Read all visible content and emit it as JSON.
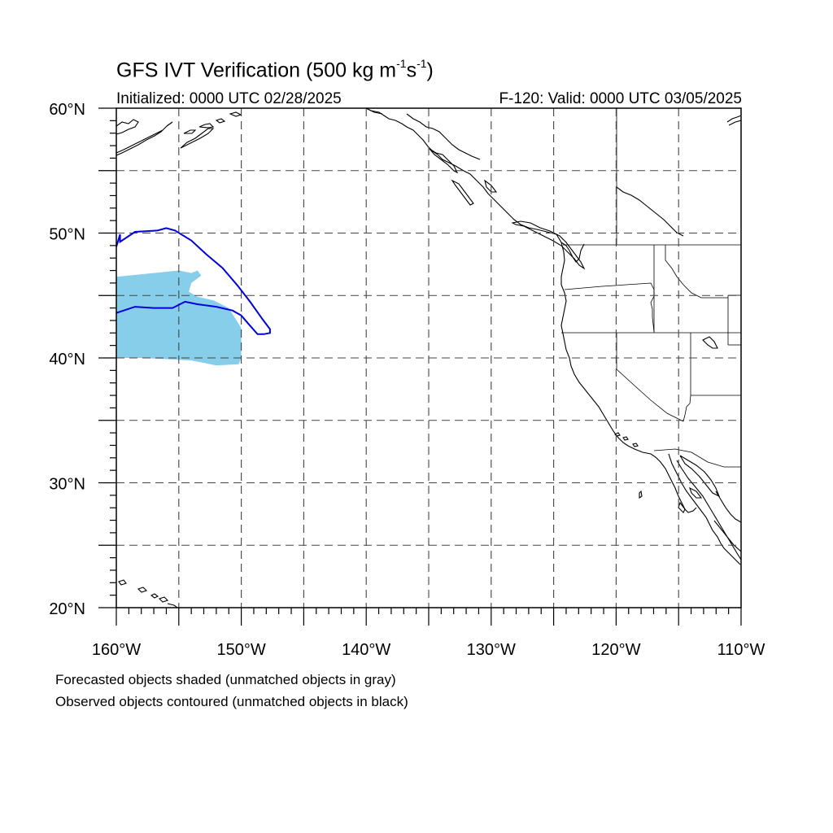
{
  "title": {
    "main": "GFS IVT Verification (500 kg m",
    "sup1": "-1",
    "mid": "s",
    "sup2": "-1",
    "end": ")"
  },
  "subtitle_left": "Initialized: 0000 UTC 02/28/2025",
  "subtitle_right": "F-120: Valid: 0000 UTC 03/05/2025",
  "lat_labels": [
    "60°N",
    "50°N",
    "40°N",
    "30°N",
    "20°N"
  ],
  "lon_labels": [
    "160°W",
    "150°W",
    "140°W",
    "130°W",
    "120°W",
    "110°W"
  ],
  "footnotes": {
    "line1": "Forecasted objects shaded (unmatched objects in gray)",
    "line2": "Observed objects contoured (unmatched objects in black)"
  },
  "colors": {
    "forecast_fill": "#87CEEB",
    "observed_contour": "#0000DD",
    "grid": "#444444"
  },
  "map": {
    "lon_range": [
      -160,
      -110
    ],
    "lat_range": [
      20,
      60
    ],
    "grid_step_deg": 5
  },
  "forecast_object": {
    "polygon_lonlat": [
      [
        -160,
        46.5
      ],
      [
        -157,
        46.8
      ],
      [
        -155,
        47.0
      ],
      [
        -154,
        46.8
      ],
      [
        -153.5,
        47.0
      ],
      [
        -153.2,
        46.6
      ],
      [
        -154,
        46.0
      ],
      [
        -154.2,
        45.3
      ],
      [
        -153.5,
        44.9
      ],
      [
        -152.2,
        44.6
      ],
      [
        -151,
        44.0
      ],
      [
        -150.5,
        43.2
      ],
      [
        -150,
        42.4
      ],
      [
        -150,
        40.0
      ],
      [
        -150.2,
        39.5
      ],
      [
        -152,
        39.4
      ],
      [
        -154,
        39.8
      ],
      [
        -156,
        39.9
      ],
      [
        -158,
        40.0
      ],
      [
        -160,
        40.0
      ]
    ]
  },
  "observed_object": {
    "polyline_lonlat": [
      [
        -160,
        48.9
      ],
      [
        -159.7,
        49.9
      ],
      [
        -159.7,
        49.3
      ],
      [
        -158.5,
        50.1
      ],
      [
        -156.7,
        50.2
      ],
      [
        -156,
        50.4
      ],
      [
        -155.3,
        50.2
      ],
      [
        -154,
        49.4
      ],
      [
        -152.8,
        48.3
      ],
      [
        -151.5,
        47.2
      ],
      [
        -150.3,
        45.8
      ],
      [
        -149.3,
        44.5
      ],
      [
        -148.3,
        43.1
      ],
      [
        -147.7,
        42.3
      ],
      [
        -147.7,
        42.0
      ],
      [
        -148.2,
        41.9
      ],
      [
        -148.7,
        41.9
      ],
      [
        -149.4,
        42.7
      ],
      [
        -150,
        43.4
      ],
      [
        -150.7,
        43.8
      ],
      [
        -152,
        44.1
      ],
      [
        -153.5,
        44.3
      ],
      [
        -154.5,
        44.5
      ],
      [
        -155.5,
        44.0
      ],
      [
        -157,
        44.0
      ],
      [
        -158.5,
        44.1
      ],
      [
        -160,
        43.6
      ]
    ]
  }
}
